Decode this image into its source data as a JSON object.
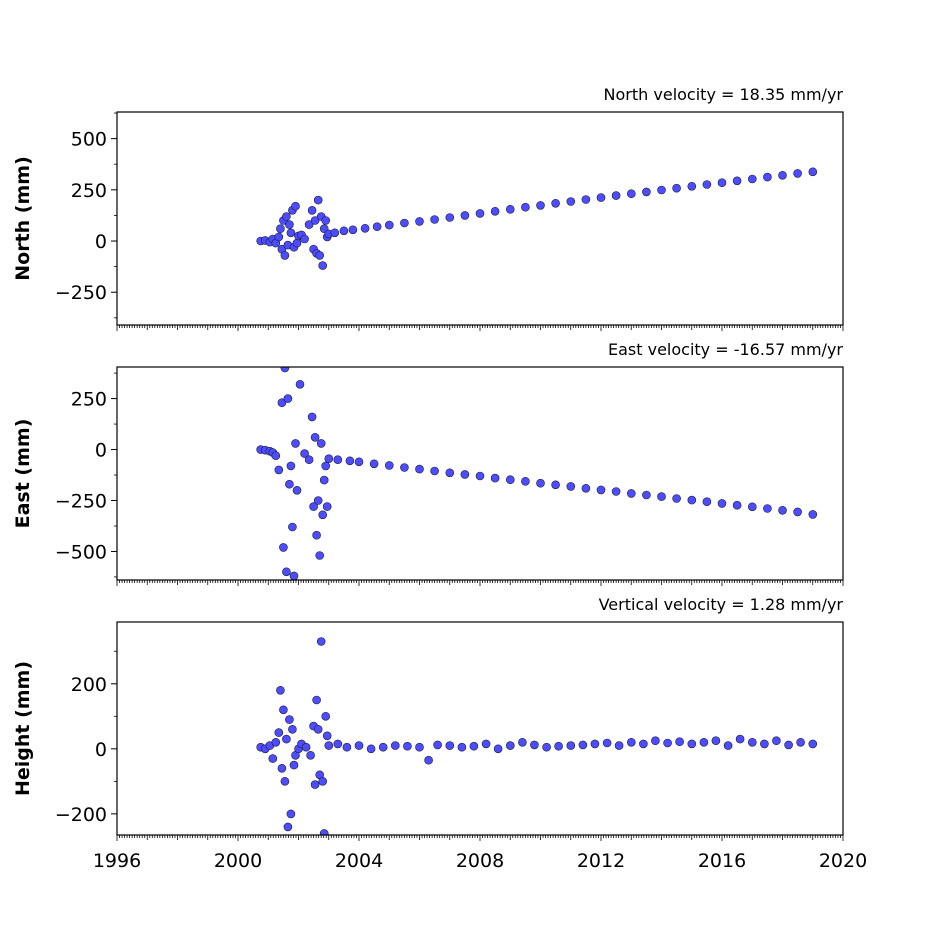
{
  "chart_data": [
    {
      "type": "scatter",
      "title": "North velocity = 18.35 mm/yr",
      "ylabel": "North (mm)",
      "xlim": [
        1996,
        2020
      ],
      "ylim": [
        -410,
        630
      ],
      "yticks": [
        -250,
        0,
        250,
        500
      ],
      "ytick_labels": [
        "−250",
        "0",
        "250",
        "500"
      ],
      "velocity_mm_per_yr": 18.35,
      "marker_color": "#4d4dff",
      "series": [
        {
          "x": [
            2000.75,
            2000.9,
            2001.05,
            2001.15,
            2001.25,
            2001.35,
            2001.4,
            2001.45,
            2001.5,
            2001.55,
            2001.6,
            2001.65,
            2001.7,
            2001.75,
            2001.8,
            2001.85,
            2001.9,
            2001.95,
            2002.0,
            2002.1,
            2002.2,
            2002.35,
            2002.45,
            2002.5,
            2002.55,
            2002.6,
            2002.65,
            2002.7,
            2002.75,
            2002.8,
            2002.85,
            2002.9,
            2002.95,
            2003.0,
            2003.2,
            2003.5,
            2003.8,
            2004.2,
            2004.6,
            2005.0,
            2005.5,
            2006.0,
            2006.5,
            2007.0,
            2007.5,
            2008.0,
            2008.5,
            2009.0,
            2009.5,
            2010.0,
            2010.5,
            2011.0,
            2011.5,
            2012.0,
            2012.5,
            2013.0,
            2013.5,
            2014.0,
            2014.5,
            2015.0,
            2015.5,
            2016.0,
            2016.5,
            2017.0,
            2017.5,
            2018.0,
            2018.5,
            2019.0
          ],
          "y": [
            0,
            3,
            -5,
            10,
            -10,
            20,
            60,
            -40,
            100,
            -70,
            120,
            -20,
            80,
            40,
            150,
            -30,
            170,
            -10,
            25,
            30,
            10,
            80,
            150,
            -40,
            100,
            -60,
            200,
            -70,
            120,
            -120,
            60,
            100,
            20,
            35,
            40,
            50,
            55,
            62,
            70,
            78,
            88,
            96,
            105,
            115,
            125,
            135,
            145,
            155,
            165,
            174,
            184,
            193,
            203,
            212,
            222,
            231,
            240,
            249,
            258,
            267,
            276,
            285,
            294,
            303,
            312,
            321,
            330,
            338
          ]
        }
      ]
    },
    {
      "type": "scatter",
      "title": "East velocity = -16.57 mm/yr",
      "ylabel": "East (mm)",
      "xlim": [
        1996,
        2020
      ],
      "ylim": [
        -640,
        405
      ],
      "yticks": [
        -500,
        -250,
        0,
        250
      ],
      "ytick_labels": [
        "−500",
        "−250",
        "0",
        "250"
      ],
      "velocity_mm_per_yr": -16.57,
      "marker_color": "#4d4dff",
      "series": [
        {
          "x": [
            2000.75,
            2000.9,
            2001.05,
            2001.15,
            2001.25,
            2001.35,
            2001.45,
            2001.5,
            2001.55,
            2001.6,
            2001.65,
            2001.7,
            2001.75,
            2001.8,
            2001.85,
            2001.9,
            2001.95,
            2002.05,
            2002.2,
            2002.35,
            2002.45,
            2002.5,
            2002.55,
            2002.6,
            2002.65,
            2002.7,
            2002.75,
            2002.8,
            2002.85,
            2002.9,
            2002.95,
            2003.0,
            2003.3,
            2003.7,
            2004.0,
            2004.5,
            2005.0,
            2005.5,
            2006.0,
            2006.5,
            2007.0,
            2007.5,
            2008.0,
            2008.5,
            2009.0,
            2009.5,
            2010.0,
            2010.5,
            2011.0,
            2011.5,
            2012.0,
            2012.5,
            2013.0,
            2013.5,
            2014.0,
            2014.5,
            2015.0,
            2015.5,
            2016.0,
            2016.5,
            2017.0,
            2017.5,
            2018.0,
            2018.5,
            2019.0
          ],
          "y": [
            0,
            -3,
            -8,
            -15,
            -30,
            -100,
            230,
            -480,
            400,
            -600,
            250,
            -170,
            -80,
            -380,
            -620,
            30,
            -200,
            320,
            -20,
            -50,
            160,
            -280,
            60,
            -420,
            -250,
            -520,
            30,
            -320,
            -150,
            -80,
            -280,
            -45,
            -50,
            -55,
            -60,
            -70,
            -78,
            -88,
            -96,
            -105,
            -114,
            -122,
            -130,
            -140,
            -148,
            -156,
            -165,
            -173,
            -181,
            -190,
            -198,
            -206,
            -215,
            -223,
            -231,
            -240,
            -248,
            -256,
            -264,
            -273,
            -281,
            -289,
            -298,
            -306,
            -318
          ]
        }
      ]
    },
    {
      "type": "scatter",
      "title": "Vertical velocity = 1.28 mm/yr",
      "ylabel": "Height (mm)",
      "xlim": [
        1996,
        2020
      ],
      "xticks": [
        1996,
        2000,
        2004,
        2008,
        2012,
        2016,
        2020
      ],
      "xtick_labels": [
        "1996",
        "2000",
        "2004",
        "2008",
        "2012",
        "2016",
        "2020"
      ],
      "ylim": [
        -265,
        390
      ],
      "yticks": [
        -200,
        0,
        200
      ],
      "ytick_labels": [
        "−200",
        "0",
        "200"
      ],
      "velocity_mm_per_yr": 1.28,
      "marker_color": "#4d4dff",
      "series": [
        {
          "x": [
            2000.75,
            2000.9,
            2001.05,
            2001.15,
            2001.25,
            2001.35,
            2001.4,
            2001.45,
            2001.5,
            2001.55,
            2001.6,
            2001.65,
            2001.7,
            2001.75,
            2001.8,
            2001.85,
            2001.9,
            2002.0,
            2002.1,
            2002.25,
            2002.4,
            2002.5,
            2002.55,
            2002.6,
            2002.65,
            2002.7,
            2002.75,
            2002.8,
            2002.85,
            2002.9,
            2002.95,
            2003.0,
            2003.3,
            2003.6,
            2004.0,
            2004.4,
            2004.8,
            2005.2,
            2005.6,
            2006.0,
            2006.3,
            2006.6,
            2007.0,
            2007.4,
            2007.8,
            2008.2,
            2008.6,
            2009.0,
            2009.4,
            2009.8,
            2010.2,
            2010.6,
            2011.0,
            2011.4,
            2011.8,
            2012.2,
            2012.6,
            2013.0,
            2013.4,
            2013.8,
            2014.2,
            2014.6,
            2015.0,
            2015.4,
            2015.8,
            2016.2,
            2016.6,
            2017.0,
            2017.4,
            2017.8,
            2018.2,
            2018.6,
            2019.0
          ],
          "y": [
            5,
            0,
            10,
            -30,
            20,
            50,
            180,
            -60,
            120,
            -100,
            30,
            -240,
            90,
            -200,
            60,
            -50,
            -20,
            0,
            15,
            5,
            -20,
            70,
            -110,
            150,
            60,
            -80,
            330,
            -100,
            -260,
            100,
            40,
            10,
            15,
            5,
            10,
            0,
            5,
            10,
            8,
            5,
            -35,
            12,
            10,
            5,
            8,
            15,
            0,
            10,
            20,
            12,
            5,
            8,
            10,
            12,
            15,
            18,
            10,
            20,
            15,
            25,
            18,
            22,
            15,
            20,
            25,
            10,
            30,
            20,
            15,
            25,
            12,
            20,
            15
          ]
        }
      ]
    }
  ]
}
